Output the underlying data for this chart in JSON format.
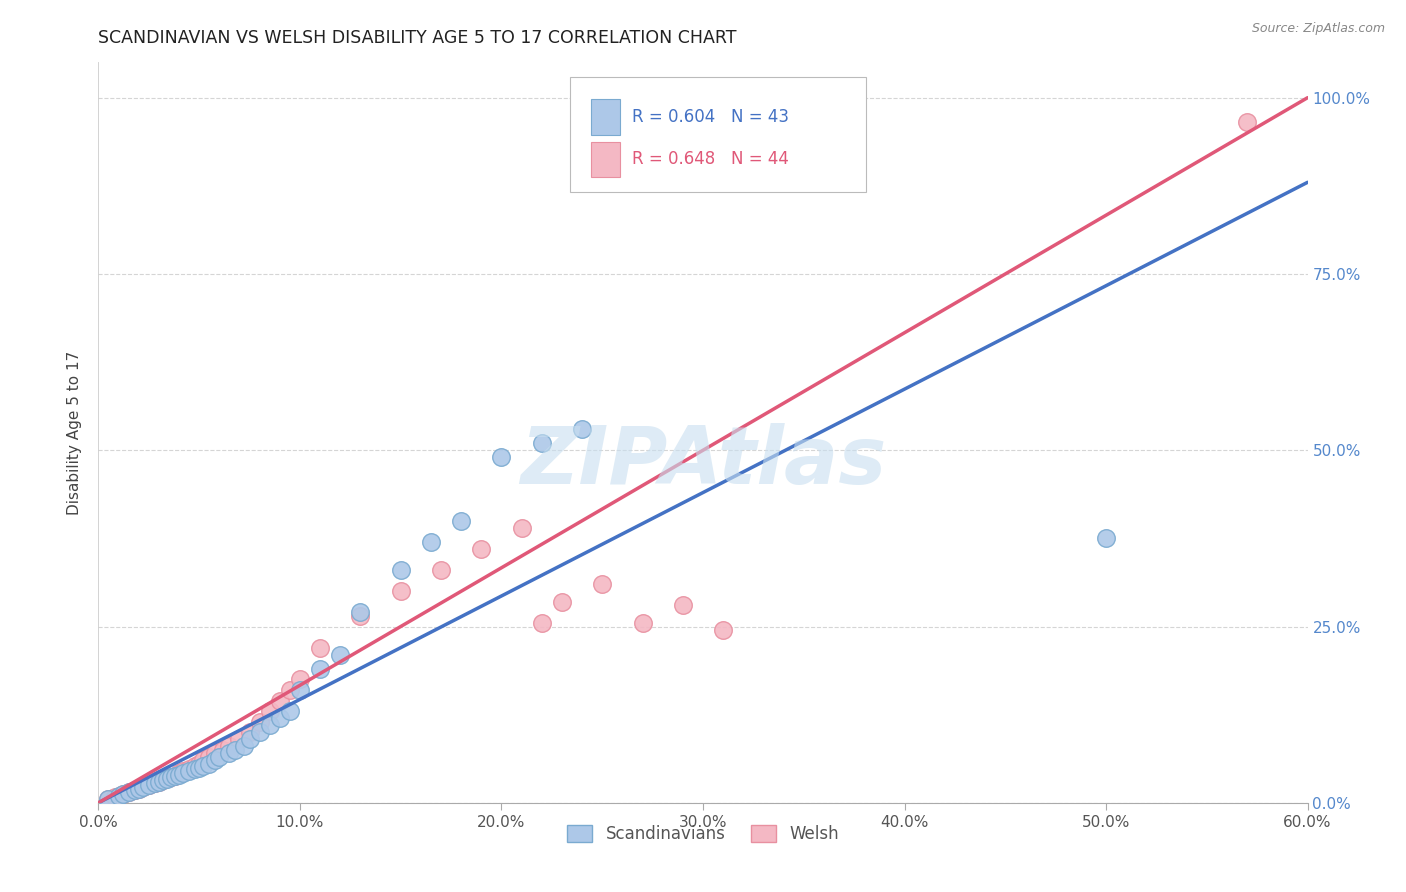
{
  "title": "SCANDINAVIAN VS WELSH DISABILITY AGE 5 TO 17 CORRELATION CHART",
  "source": "Source: ZipAtlas.com",
  "ylabel": "Disability Age 5 to 17",
  "xlim": [
    0.0,
    0.62
  ],
  "ylim": [
    -0.02,
    1.08
  ],
  "plot_xlim": [
    0.0,
    0.6
  ],
  "plot_ylim": [
    0.0,
    1.05
  ],
  "ytick_labels": [
    "0.0%",
    "25.0%",
    "50.0%",
    "75.0%",
    "100.0%"
  ],
  "ytick_vals": [
    0.0,
    0.25,
    0.5,
    0.75,
    1.0
  ],
  "xtick_labels": [
    "0.0%",
    "10.0%",
    "20.0%",
    "30.0%",
    "40.0%",
    "50.0%",
    "60.0%"
  ],
  "xtick_vals": [
    0.0,
    0.1,
    0.2,
    0.3,
    0.4,
    0.5,
    0.6
  ],
  "legend_labels": [
    "Scandinavians",
    "Welsh"
  ],
  "legend_R": [
    "R = 0.604",
    "R = 0.648"
  ],
  "legend_N": [
    "N = 43",
    "N = 44"
  ],
  "blue_color": "#adc8e8",
  "blue_edge_color": "#7aaad0",
  "pink_color": "#f4b8c4",
  "pink_edge_color": "#e890a0",
  "blue_line_color": "#4472c4",
  "pink_line_color": "#e05878",
  "diagonal_color": "#c8c8c8",
  "watermark_text": "ZIPAtlas",
  "watermark_color": "#c8dff0",
  "scand_x": [
    0.005,
    0.01,
    0.012,
    0.015,
    0.018,
    0.02,
    0.022,
    0.025,
    0.028,
    0.03,
    0.032,
    0.034,
    0.036,
    0.038,
    0.04,
    0.042,
    0.045,
    0.048,
    0.05,
    0.052,
    0.055,
    0.058,
    0.06,
    0.065,
    0.068,
    0.072,
    0.075,
    0.08,
    0.085,
    0.09,
    0.095,
    0.1,
    0.11,
    0.12,
    0.13,
    0.15,
    0.165,
    0.18,
    0.2,
    0.22,
    0.24,
    0.5,
    0.3
  ],
  "scand_y": [
    0.005,
    0.01,
    0.012,
    0.015,
    0.018,
    0.02,
    0.022,
    0.025,
    0.028,
    0.03,
    0.032,
    0.034,
    0.036,
    0.038,
    0.04,
    0.042,
    0.045,
    0.048,
    0.05,
    0.052,
    0.055,
    0.06,
    0.065,
    0.07,
    0.075,
    0.08,
    0.09,
    0.1,
    0.11,
    0.12,
    0.13,
    0.16,
    0.19,
    0.21,
    0.27,
    0.33,
    0.37,
    0.4,
    0.49,
    0.51,
    0.53,
    0.375,
    0.965
  ],
  "welsh_x": [
    0.005,
    0.008,
    0.01,
    0.012,
    0.015,
    0.018,
    0.02,
    0.022,
    0.025,
    0.028,
    0.03,
    0.032,
    0.035,
    0.038,
    0.04,
    0.042,
    0.045,
    0.048,
    0.05,
    0.052,
    0.055,
    0.058,
    0.062,
    0.065,
    0.07,
    0.075,
    0.08,
    0.085,
    0.09,
    0.095,
    0.1,
    0.11,
    0.13,
    0.15,
    0.17,
    0.19,
    0.21,
    0.22,
    0.23,
    0.25,
    0.27,
    0.29,
    0.31,
    0.57
  ],
  "welsh_y": [
    0.005,
    0.008,
    0.01,
    0.012,
    0.015,
    0.018,
    0.02,
    0.022,
    0.025,
    0.028,
    0.03,
    0.032,
    0.035,
    0.038,
    0.042,
    0.045,
    0.048,
    0.052,
    0.055,
    0.06,
    0.065,
    0.07,
    0.075,
    0.08,
    0.09,
    0.1,
    0.115,
    0.13,
    0.145,
    0.16,
    0.175,
    0.22,
    0.265,
    0.3,
    0.33,
    0.36,
    0.39,
    0.255,
    0.285,
    0.31,
    0.255,
    0.28,
    0.245,
    0.965
  ],
  "blue_line": [
    [
      0.0,
      0.6
    ],
    [
      0.0,
      0.88
    ]
  ],
  "pink_line": [
    [
      0.0,
      0.6
    ],
    [
      0.0,
      1.0
    ]
  ],
  "diag_line": [
    [
      0.0,
      0.6
    ],
    [
      0.0,
      1.0
    ]
  ]
}
